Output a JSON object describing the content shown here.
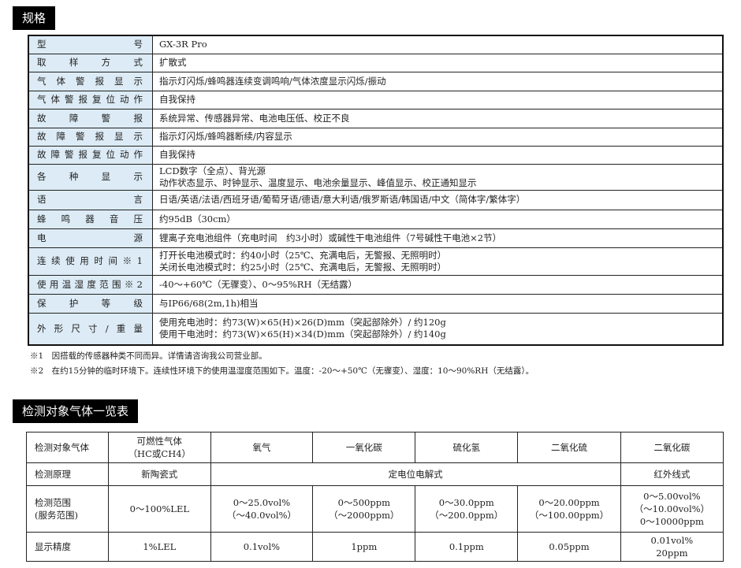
{
  "spec_title": "规格",
  "spec_rows": [
    {
      "label": "型号",
      "value": [
        "GX-3R Pro"
      ]
    },
    {
      "label": "取样方式",
      "value": [
        "扩散式"
      ]
    },
    {
      "label": "气体警报显示",
      "value": [
        "指示灯闪烁/蜂鸣器连续变调鸣响/气体浓度显示闪烁/振动"
      ]
    },
    {
      "label": "气体警报复位动作",
      "value": [
        "自我保持"
      ]
    },
    {
      "label": "故障警报",
      "value": [
        "系统异常、传感器异常、电池电压低、校正不良"
      ]
    },
    {
      "label": "故障警报显示",
      "value": [
        "指示灯闪烁/蜂鸣器断续/内容显示"
      ]
    },
    {
      "label": "故障警报复位动作",
      "value": [
        "自我保持"
      ]
    },
    {
      "label": "各种显示",
      "value": [
        "LCD数字（全点）、背光源",
        "动作状态显示、时钟显示、温度显示、电池余量显示、峰值显示、校正通知显示"
      ]
    },
    {
      "label": "语言",
      "value": [
        "日语/英语/法语/西班牙语/葡萄牙语/德语/意大利语/俄罗斯语/韩国语/中文（简体字/繁体字）"
      ]
    },
    {
      "label": "蜂鸣器音压",
      "value": [
        "约95dB（30cm）"
      ]
    },
    {
      "label": "电源",
      "value": [
        "锂离子充电池组件（充电时间　约3小时）或碱性干电池组件（7号碱性干电池×2节）"
      ]
    },
    {
      "label": "连续使用时间※1",
      "value": [
        "打开长电池模式时：约40小时（25℃、充满电后，无警报、无照明时）",
        "关闭长电池模式时：约25小时（25℃、充满电后，无警报、无照明时）"
      ]
    },
    {
      "label": "使用温湿度范围※2",
      "value": [
        "-40～+60℃（无骤变）、0～95%RH（无结露）"
      ]
    },
    {
      "label": "保护等级",
      "value": [
        "与IP66/68(2m,1h)相当"
      ]
    },
    {
      "label": "外形尺寸/重量",
      "value": [
        "使用充电池时：约73(W)×65(H)×26(D)mm（突起部除外）/ 约120g",
        "使用干电池时：约73(W)×65(H)×34(D)mm（突起部除外）/ 约140g"
      ]
    }
  ],
  "notes": [
    "※1　因搭载的传感器种类不同而异。详情请咨询我公司营业部。",
    "※2　在约15分钟的临时环境下。连续性环境下的使用温湿度范围如下。温度：-20～+50℃（无骤变）、湿度：10～90%RH（无结露）。"
  ],
  "gas_title": "检测对象气体一览表",
  "gas": {
    "header": [
      "检测对象气体",
      "可燃性气体\n（HC或CH4）",
      "氧气",
      "一氧化碳",
      "硫化氢",
      "二氧化硫",
      "二氧化碳"
    ],
    "principle": {
      "label": "检测原理",
      "items": [
        "新陶瓷式",
        "定电位电解式",
        "红外线式"
      ]
    },
    "range": {
      "label": "检测范围\n(服务范围)",
      "items": [
        "0～100%LEL",
        "0～25.0vol%\n（～40.0vol%）",
        "0～500ppm\n（～2000ppm）",
        "0～30.0ppm\n（～200.0ppm）",
        "0～20.00ppm\n（～100.00ppm）",
        "0～5.00vol%\n（～10.00vol%）\n0～10000ppm"
      ]
    },
    "resolution": {
      "label": "显示精度",
      "items": [
        "1%LEL",
        "0.1vol%",
        "1ppm",
        "0.1ppm",
        "0.05ppm",
        "0.01vol%\n20ppm"
      ]
    }
  }
}
